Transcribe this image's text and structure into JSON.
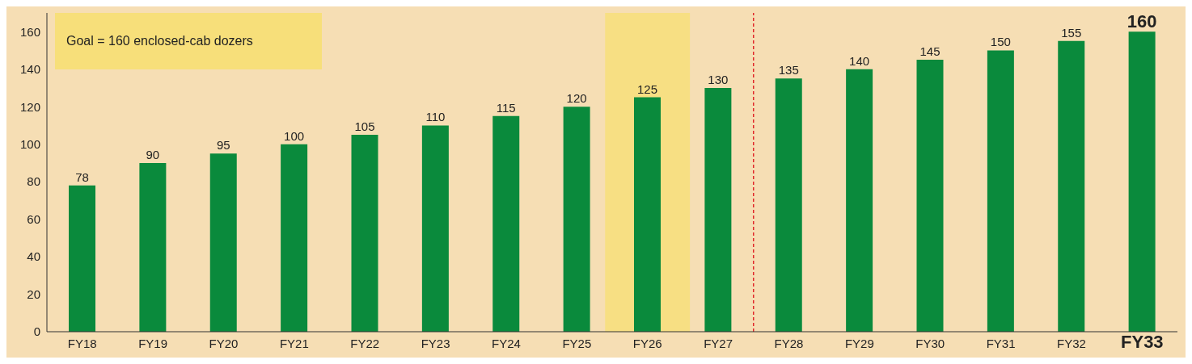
{
  "chart_data": {
    "type": "bar",
    "categories": [
      "FY18",
      "FY19",
      "FY20",
      "FY21",
      "FY22",
      "FY23",
      "FY24",
      "FY25",
      "FY26",
      "FY27",
      "FY28",
      "FY29",
      "FY30",
      "FY31",
      "FY32",
      "FY33"
    ],
    "values": [
      78,
      90,
      95,
      100,
      105,
      110,
      115,
      120,
      125,
      130,
      135,
      140,
      145,
      150,
      155,
      160
    ],
    "color": "#0a8a3c",
    "ylim": [
      0,
      170
    ],
    "yticks": [
      0,
      20,
      40,
      60,
      80,
      100,
      120,
      140,
      160
    ],
    "data_labels": true,
    "grid": false,
    "legend": false,
    "annotations": [
      "Goal = 160 enclosed-cab dozers"
    ],
    "bands": [
      {
        "axis": "x",
        "from": "FY26",
        "to": "FY26",
        "color": "#f7df7a"
      }
    ],
    "ref_lines": [
      {
        "axis": "x",
        "value": "FY28",
        "color": "#e0282a",
        "line_style": "dashed"
      }
    ]
  }
}
